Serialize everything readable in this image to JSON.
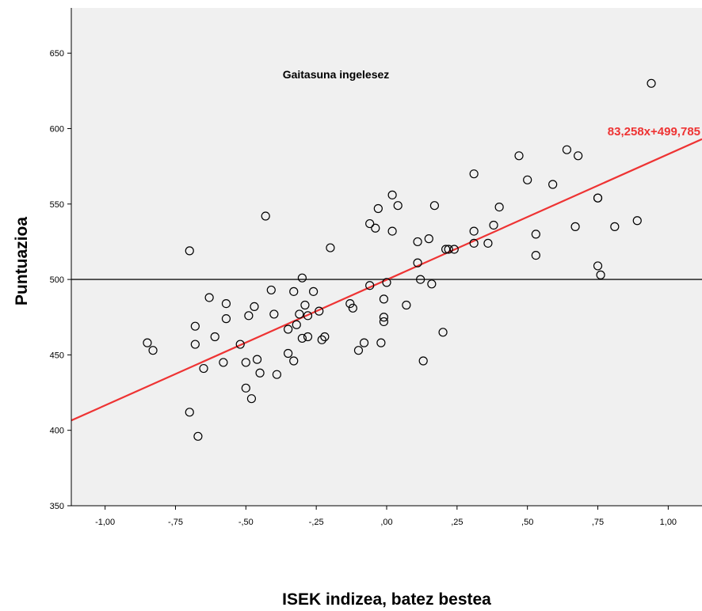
{
  "chart_data": {
    "type": "scatter",
    "title": "",
    "xlabel": "ISEK indizea, batez bestea",
    "ylabel": "Puntuazioa",
    "xlim": [
      -1.12,
      1.12
    ],
    "ylim": [
      350,
      680
    ],
    "x_ticks": [
      -1.0,
      -0.75,
      -0.5,
      -0.25,
      0.0,
      0.25,
      0.5,
      0.75,
      1.0
    ],
    "x_tick_labels": [
      "-1,00",
      "-,75",
      "-,50",
      "-,25",
      ",00",
      ",25",
      ",50",
      ",75",
      "1,00"
    ],
    "y_ticks": [
      350,
      400,
      450,
      500,
      550,
      600,
      650
    ],
    "y_tick_labels": [
      "350",
      "400",
      "450",
      "500",
      "550",
      "600",
      "650"
    ],
    "grid": false,
    "annotation": "Gaitasuna ingelesez",
    "reference_line_y": 500,
    "fit_line": {
      "slope": 83.258,
      "intercept": 499.785,
      "label": "83,258x+499,785",
      "color": "#ee3333"
    },
    "marker_color": "#000000",
    "background_color": "#f0f0f0",
    "points": [
      [
        -0.85,
        458
      ],
      [
        -0.83,
        453
      ],
      [
        -0.7,
        519
      ],
      [
        -0.7,
        412
      ],
      [
        -0.68,
        469
      ],
      [
        -0.68,
        457
      ],
      [
        -0.67,
        396
      ],
      [
        -0.65,
        441
      ],
      [
        -0.63,
        488
      ],
      [
        -0.61,
        462
      ],
      [
        -0.58,
        445
      ],
      [
        -0.57,
        484
      ],
      [
        -0.57,
        474
      ],
      [
        -0.52,
        457
      ],
      [
        -0.5,
        445
      ],
      [
        -0.5,
        428
      ],
      [
        -0.49,
        476
      ],
      [
        -0.48,
        421
      ],
      [
        -0.47,
        482
      ],
      [
        -0.46,
        447
      ],
      [
        -0.45,
        438
      ],
      [
        -0.43,
        542
      ],
      [
        -0.41,
        493
      ],
      [
        -0.4,
        477
      ],
      [
        -0.39,
        437
      ],
      [
        -0.35,
        467
      ],
      [
        -0.35,
        451
      ],
      [
        -0.33,
        446
      ],
      [
        -0.33,
        492
      ],
      [
        -0.32,
        470
      ],
      [
        -0.31,
        477
      ],
      [
        -0.3,
        501
      ],
      [
        -0.3,
        461
      ],
      [
        -0.29,
        483
      ],
      [
        -0.28,
        462
      ],
      [
        -0.28,
        476
      ],
      [
        -0.26,
        492
      ],
      [
        -0.24,
        479
      ],
      [
        -0.23,
        460
      ],
      [
        -0.22,
        462
      ],
      [
        -0.2,
        521
      ],
      [
        -0.13,
        484
      ],
      [
        -0.12,
        481
      ],
      [
        -0.1,
        453
      ],
      [
        -0.08,
        458
      ],
      [
        -0.06,
        496
      ],
      [
        -0.06,
        537
      ],
      [
        -0.04,
        534
      ],
      [
        -0.03,
        547
      ],
      [
        -0.02,
        458
      ],
      [
        -0.01,
        472
      ],
      [
        -0.01,
        475
      ],
      [
        -0.01,
        487
      ],
      [
        0.0,
        498
      ],
      [
        0.02,
        532
      ],
      [
        0.02,
        556
      ],
      [
        0.04,
        549
      ],
      [
        0.07,
        483
      ],
      [
        0.11,
        525
      ],
      [
        0.11,
        511
      ],
      [
        0.12,
        500
      ],
      [
        0.13,
        446
      ],
      [
        0.15,
        527
      ],
      [
        0.16,
        497
      ],
      [
        0.17,
        549
      ],
      [
        0.2,
        465
      ],
      [
        0.21,
        520
      ],
      [
        0.22,
        520
      ],
      [
        0.24,
        520
      ],
      [
        0.31,
        532
      ],
      [
        0.31,
        524
      ],
      [
        0.31,
        570
      ],
      [
        0.36,
        524
      ],
      [
        0.38,
        536
      ],
      [
        0.4,
        548
      ],
      [
        0.47,
        582
      ],
      [
        0.5,
        566
      ],
      [
        0.53,
        530
      ],
      [
        0.53,
        516
      ],
      [
        0.59,
        563
      ],
      [
        0.64,
        586
      ],
      [
        0.67,
        535
      ],
      [
        0.68,
        582
      ],
      [
        0.75,
        554
      ],
      [
        0.75,
        554
      ],
      [
        0.75,
        509
      ],
      [
        0.76,
        503
      ],
      [
        0.81,
        535
      ],
      [
        0.89,
        539
      ],
      [
        0.94,
        630
      ]
    ]
  }
}
